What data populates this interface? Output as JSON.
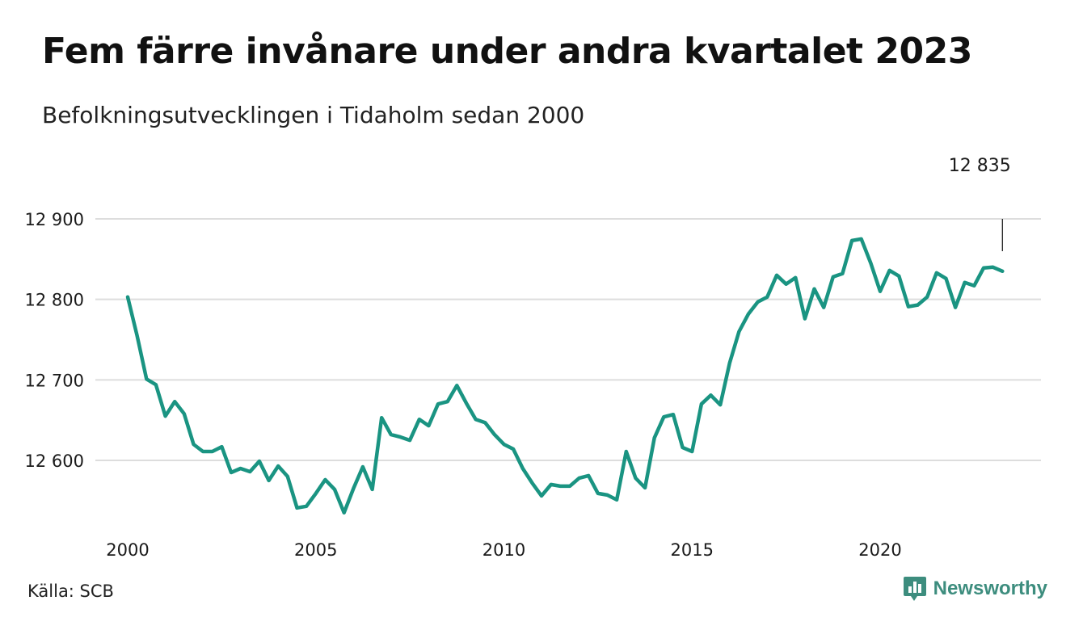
{
  "header": {
    "title": "Fem färre invånare under andra kvartalet 2023",
    "subtitle": "Befolkningsutvecklingen i Tidaholm sedan 2000"
  },
  "footer": {
    "source": "Källa: SCB",
    "brand": "Newsworthy",
    "brand_icon": "bar-chart-icon"
  },
  "colors": {
    "line": "#1a9482",
    "grid": "#dddddd",
    "brand": "#3d8d7e"
  },
  "chart_data": {
    "type": "line",
    "title": "Fem färre invånare under andra kvartalet 2023",
    "subtitle": "Befolkningsutvecklingen i Tidaholm sedan 2000",
    "xlabel": "",
    "ylabel": "",
    "x_tick_labels": [
      "2000",
      "2005",
      "2010",
      "2015",
      "2020"
    ],
    "y_tick_labels": [
      "12 600",
      "12 700",
      "12 800",
      "12 900"
    ],
    "x_range": [
      2000.0,
      2023.25
    ],
    "ylim": [
      12530,
      12900
    ],
    "grid": true,
    "last_value_label": "12 835",
    "series": [
      {
        "x": [
          2000.0,
          2000.25,
          2000.5,
          2000.75,
          2001.0,
          2001.25,
          2001.5,
          2001.75,
          2002.0,
          2002.25,
          2002.5,
          2002.75,
          2003.0,
          2003.25,
          2003.5,
          2003.75,
          2004.0,
          2004.25,
          2004.5,
          2004.75,
          2005.0,
          2005.25,
          2005.5,
          2005.75,
          2006.0,
          2006.25,
          2006.5,
          2006.75,
          2007.0,
          2007.25,
          2007.5,
          2007.75,
          2008.0,
          2008.25,
          2008.5,
          2008.75,
          2009.0,
          2009.25,
          2009.5,
          2009.75,
          2010.0,
          2010.25,
          2010.5,
          2010.75,
          2011.0,
          2011.25,
          2011.5,
          2011.75,
          2012.0,
          2012.25,
          2012.5,
          2012.75,
          2013.0,
          2013.25,
          2013.5,
          2013.75,
          2014.0,
          2014.25,
          2014.5,
          2014.75,
          2015.0,
          2015.25,
          2015.5,
          2015.75,
          2016.0,
          2016.25,
          2016.5,
          2016.75,
          2017.0,
          2017.25,
          2017.5,
          2017.75,
          2018.0,
          2018.25,
          2018.5,
          2018.75,
          2019.0,
          2019.25,
          2019.5,
          2019.75,
          2020.0,
          2020.25,
          2020.5,
          2020.75,
          2021.0,
          2021.25,
          2021.5,
          2021.75,
          2022.0,
          2022.25,
          2022.5,
          2022.75,
          2023.0,
          2023.25
        ],
        "values": [
          12803,
          12755,
          12701,
          12694,
          12655,
          12673,
          12658,
          12620,
          12611,
          12611,
          12617,
          12585,
          12590,
          12586,
          12599,
          12575,
          12593,
          12580,
          12541,
          12543,
          12559,
          12576,
          12564,
          12535,
          12565,
          12592,
          12564,
          12653,
          12632,
          12629,
          12625,
          12651,
          12643,
          12670,
          12673,
          12693,
          12671,
          12651,
          12647,
          12632,
          12620,
          12614,
          12590,
          12572,
          12556,
          12570,
          12568,
          12568,
          12578,
          12581,
          12559,
          12557,
          12551,
          12611,
          12578,
          12566,
          12628,
          12654,
          12657,
          12616,
          12611,
          12670,
          12681,
          12669,
          12721,
          12760,
          12782,
          12797,
          12803,
          12830,
          12819,
          12827,
          12776,
          12813,
          12790,
          12828,
          12832,
          12873,
          12875,
          12845,
          12810,
          12836,
          12829,
          12791,
          12793,
          12803,
          12833,
          12826,
          12790,
          12821,
          12817,
          12839,
          12840,
          12835
        ]
      }
    ]
  }
}
